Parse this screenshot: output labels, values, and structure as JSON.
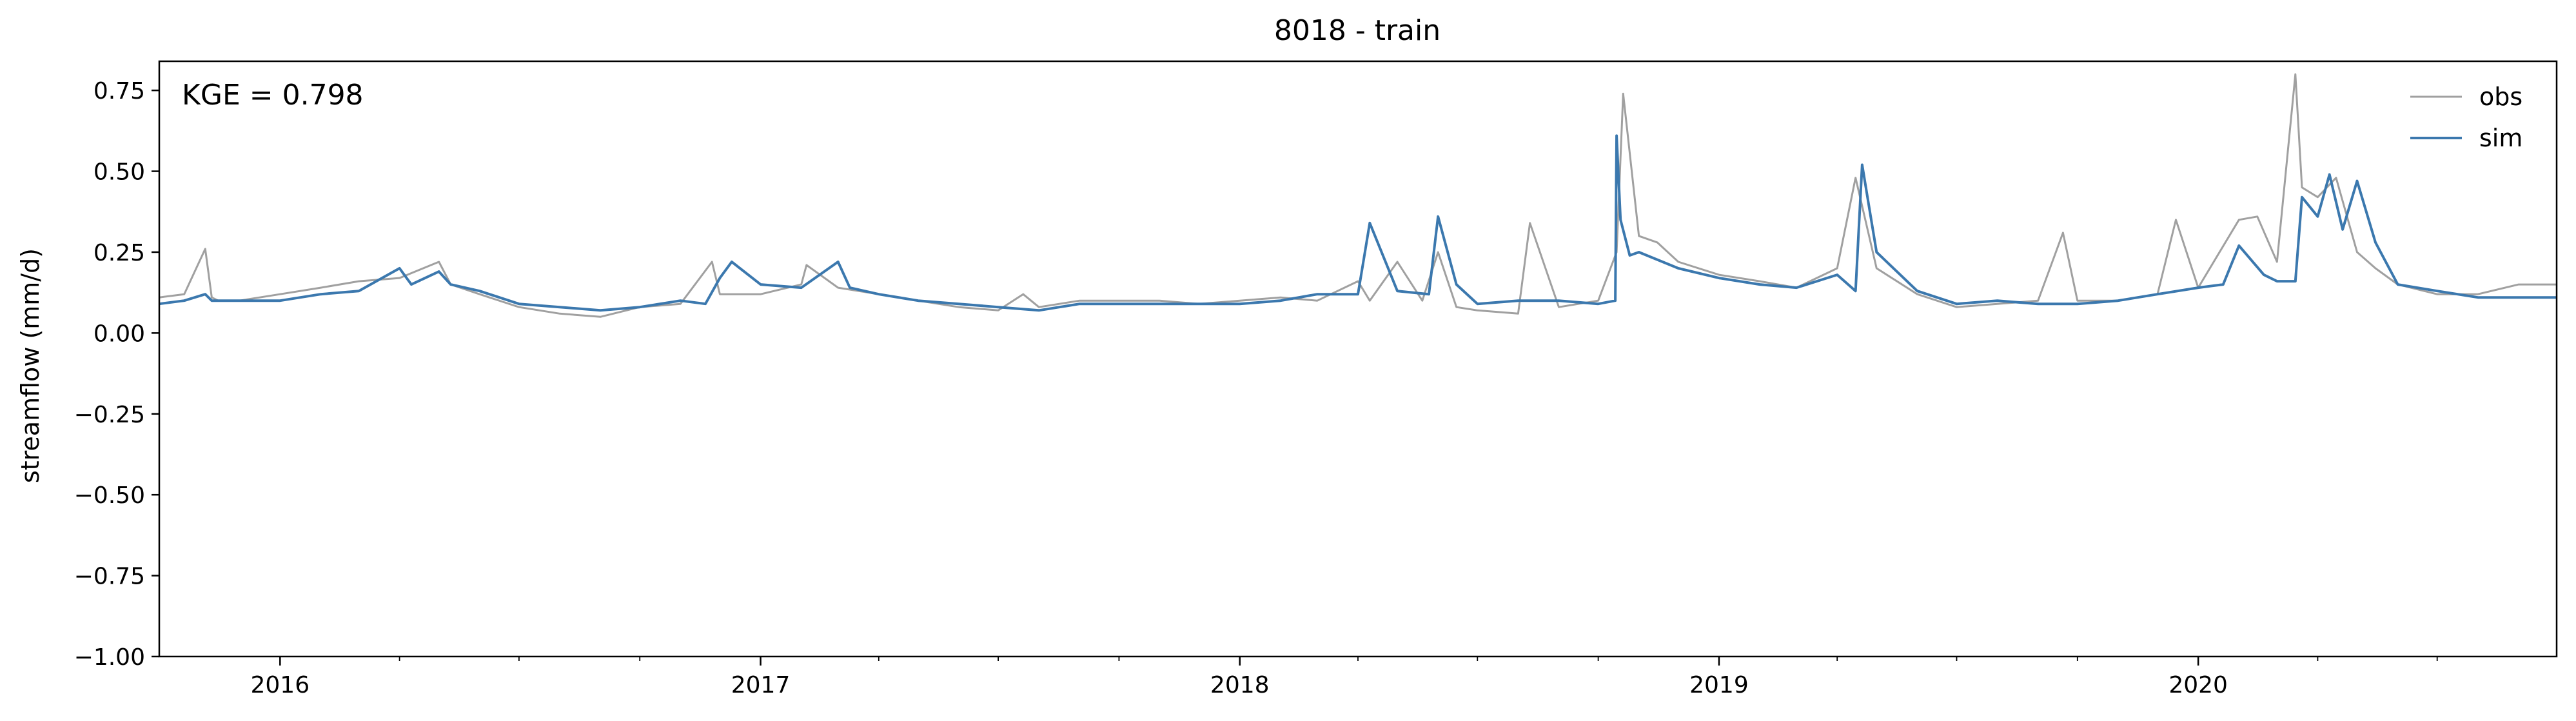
{
  "chart_data": {
    "type": "line",
    "title": "8018 - train",
    "xlabel": "",
    "ylabel": "streamflow (mm/d)",
    "annotation": "KGE = 0.798",
    "ylim": [
      -1.0,
      0.84
    ],
    "xlim": [
      "2015-10-01",
      "2020-09-30"
    ],
    "y_ticks": [
      0.75,
      0.5,
      0.25,
      0.0,
      -0.25,
      -0.5,
      -0.75,
      -1.0
    ],
    "y_tick_labels": [
      "0.75",
      "0.50",
      "0.25",
      "0.00",
      "−0.25",
      "−0.50",
      "−0.75",
      "−1.00"
    ],
    "x_major_ticks": [
      "2016-01-01",
      "2017-01-01",
      "2018-01-01",
      "2019-01-01",
      "2020-01-01"
    ],
    "x_tick_labels": [
      "2016",
      "2017",
      "2018",
      "2019",
      "2020"
    ],
    "x_minor_ticks": [
      "2016-07-01",
      "2017-07-01",
      "2018-07-01",
      "2019-07-01",
      "2020-07-01",
      "2016-04-01",
      "2016-10-01",
      "2017-04-01",
      "2017-10-01",
      "2018-04-01",
      "2018-10-01",
      "2019-04-01",
      "2019-10-01",
      "2020-04-01"
    ],
    "legend_position": "top-right",
    "grid": false,
    "series": [
      {
        "name": "obs",
        "color": "#a0a0a0",
        "x": [
          "2015-10-01",
          "2015-10-20",
          "2015-11-05",
          "2015-11-10",
          "2015-11-15",
          "2015-12-01",
          "2016-01-01",
          "2016-02-01",
          "2016-03-01",
          "2016-04-01",
          "2016-05-01",
          "2016-05-10",
          "2016-06-01",
          "2016-07-01",
          "2016-08-01",
          "2016-09-01",
          "2016-10-01",
          "2016-11-01",
          "2016-11-25",
          "2016-12-01",
          "2017-01-01",
          "2017-02-01",
          "2017-02-05",
          "2017-03-01",
          "2017-04-01",
          "2017-05-01",
          "2017-06-01",
          "2017-07-01",
          "2017-07-20",
          "2017-08-01",
          "2017-09-01",
          "2017-10-01",
          "2017-11-01",
          "2017-12-01",
          "2018-01-01",
          "2018-02-01",
          "2018-03-01",
          "2018-04-01",
          "2018-04-10",
          "2018-05-01",
          "2018-05-20",
          "2018-06-01",
          "2018-06-15",
          "2018-07-01",
          "2018-08-01",
          "2018-08-10",
          "2018-09-01",
          "2018-10-01",
          "2018-10-15",
          "2018-10-20",
          "2018-11-01",
          "2018-11-15",
          "2018-12-01",
          "2019-01-01",
          "2019-02-01",
          "2019-03-01",
          "2019-04-01",
          "2019-04-15",
          "2019-05-01",
          "2019-06-01",
          "2019-07-01",
          "2019-08-01",
          "2019-09-01",
          "2019-09-20",
          "2019-10-01",
          "2019-11-01",
          "2019-12-01",
          "2019-12-15",
          "2020-01-01",
          "2020-02-01",
          "2020-02-15",
          "2020-03-01",
          "2020-03-15",
          "2020-03-20",
          "2020-04-01",
          "2020-04-15",
          "2020-05-01",
          "2020-05-15",
          "2020-06-01",
          "2020-07-01",
          "2020-08-01",
          "2020-09-01",
          "2020-09-30"
        ],
        "values": [
          0.11,
          0.12,
          0.26,
          0.11,
          0.1,
          0.1,
          0.12,
          0.14,
          0.16,
          0.17,
          0.22,
          0.15,
          0.12,
          0.08,
          0.06,
          0.05,
          0.08,
          0.09,
          0.22,
          0.12,
          0.12,
          0.15,
          0.21,
          0.14,
          0.12,
          0.1,
          0.08,
          0.07,
          0.12,
          0.08,
          0.1,
          0.1,
          0.1,
          0.09,
          0.1,
          0.11,
          0.1,
          0.16,
          0.1,
          0.22,
          0.1,
          0.25,
          0.08,
          0.07,
          0.06,
          0.34,
          0.08,
          0.1,
          0.25,
          0.74,
          0.3,
          0.28,
          0.22,
          0.18,
          0.16,
          0.14,
          0.2,
          0.48,
          0.2,
          0.12,
          0.08,
          0.09,
          0.1,
          0.31,
          0.1,
          0.1,
          0.12,
          0.35,
          0.14,
          0.35,
          0.36,
          0.22,
          0.8,
          0.45,
          0.42,
          0.48,
          0.25,
          0.2,
          0.15,
          0.12,
          0.12,
          0.15,
          0.15
        ]
      },
      {
        "name": "sim",
        "color": "#3b78ae",
        "x": [
          "2015-10-01",
          "2015-10-20",
          "2015-11-05",
          "2015-11-10",
          "2015-12-01",
          "2016-01-01",
          "2016-02-01",
          "2016-03-01",
          "2016-04-01",
          "2016-04-10",
          "2016-05-01",
          "2016-05-10",
          "2016-06-01",
          "2016-07-01",
          "2016-08-01",
          "2016-09-01",
          "2016-10-01",
          "2016-11-01",
          "2016-11-20",
          "2016-12-01",
          "2016-12-10",
          "2017-01-01",
          "2017-02-01",
          "2017-03-01",
          "2017-03-10",
          "2017-04-01",
          "2017-05-01",
          "2017-06-01",
          "2017-07-01",
          "2017-08-01",
          "2017-09-01",
          "2017-10-01",
          "2017-11-01",
          "2017-12-01",
          "2018-01-01",
          "2018-02-01",
          "2018-03-01",
          "2018-04-01",
          "2018-04-10",
          "2018-05-01",
          "2018-05-25",
          "2018-06-01",
          "2018-06-15",
          "2018-07-01",
          "2018-08-01",
          "2018-09-01",
          "2018-10-01",
          "2018-10-14",
          "2018-10-15",
          "2018-10-18",
          "2018-10-25",
          "2018-11-01",
          "2018-12-01",
          "2019-01-01",
          "2019-02-01",
          "2019-03-01",
          "2019-04-01",
          "2019-04-15",
          "2019-04-20",
          "2019-05-01",
          "2019-06-01",
          "2019-07-01",
          "2019-08-01",
          "2019-09-01",
          "2019-10-01",
          "2019-11-01",
          "2019-12-01",
          "2020-01-01",
          "2020-01-20",
          "2020-02-01",
          "2020-02-20",
          "2020-03-01",
          "2020-03-15",
          "2020-03-20",
          "2020-04-01",
          "2020-04-10",
          "2020-04-20",
          "2020-05-01",
          "2020-05-15",
          "2020-06-01",
          "2020-07-01",
          "2020-08-01",
          "2020-09-01",
          "2020-09-30"
        ],
        "values": [
          0.09,
          0.1,
          0.12,
          0.1,
          0.1,
          0.1,
          0.12,
          0.13,
          0.2,
          0.15,
          0.19,
          0.15,
          0.13,
          0.09,
          0.08,
          0.07,
          0.08,
          0.1,
          0.09,
          0.17,
          0.22,
          0.15,
          0.14,
          0.22,
          0.14,
          0.12,
          0.1,
          0.09,
          0.08,
          0.07,
          0.09,
          0.09,
          0.09,
          0.09,
          0.09,
          0.1,
          0.12,
          0.12,
          0.34,
          0.13,
          0.12,
          0.36,
          0.15,
          0.09,
          0.1,
          0.1,
          0.09,
          0.1,
          0.61,
          0.35,
          0.24,
          0.25,
          0.2,
          0.17,
          0.15,
          0.14,
          0.18,
          0.13,
          0.52,
          0.25,
          0.13,
          0.09,
          0.1,
          0.09,
          0.09,
          0.1,
          0.12,
          0.14,
          0.15,
          0.27,
          0.18,
          0.16,
          0.16,
          0.42,
          0.36,
          0.49,
          0.32,
          0.47,
          0.28,
          0.15,
          0.13,
          0.11,
          0.11,
          0.11
        ]
      }
    ]
  }
}
